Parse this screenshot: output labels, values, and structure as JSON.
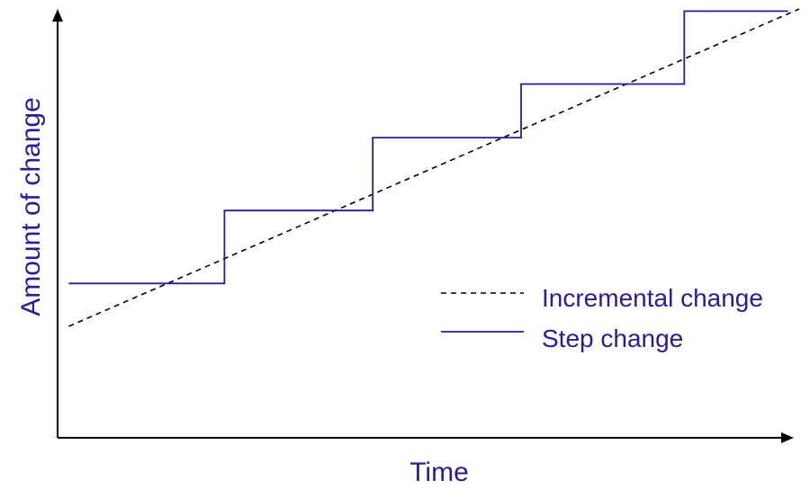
{
  "chart_data": {
    "type": "line",
    "xlabel": "Time",
    "ylabel": "Amount of change",
    "xlim": [
      0,
      100
    ],
    "ylim": [
      0,
      100
    ],
    "grid": false,
    "legend_position": "right",
    "series": [
      {
        "name": "Incremental change",
        "style": "dashed",
        "color": "#000000",
        "points": [
          [
            1.5,
            26
          ],
          [
            100,
            100
          ]
        ]
      },
      {
        "name": "Step change",
        "style": "solid-step",
        "color": "#2d1a99",
        "points": [
          [
            1.5,
            36
          ],
          [
            22.5,
            36
          ],
          [
            22.5,
            53
          ],
          [
            42.5,
            53
          ],
          [
            42.5,
            70
          ],
          [
            62.5,
            70
          ],
          [
            62.5,
            82.5
          ],
          [
            84.5,
            82.5
          ],
          [
            84.5,
            99.5
          ],
          [
            98.5,
            99.5
          ]
        ]
      }
    ]
  },
  "colors": {
    "axis": "#000000",
    "label": "#2d1a99",
    "step_line": "#2d1a99",
    "incremental_line": "#000000"
  }
}
